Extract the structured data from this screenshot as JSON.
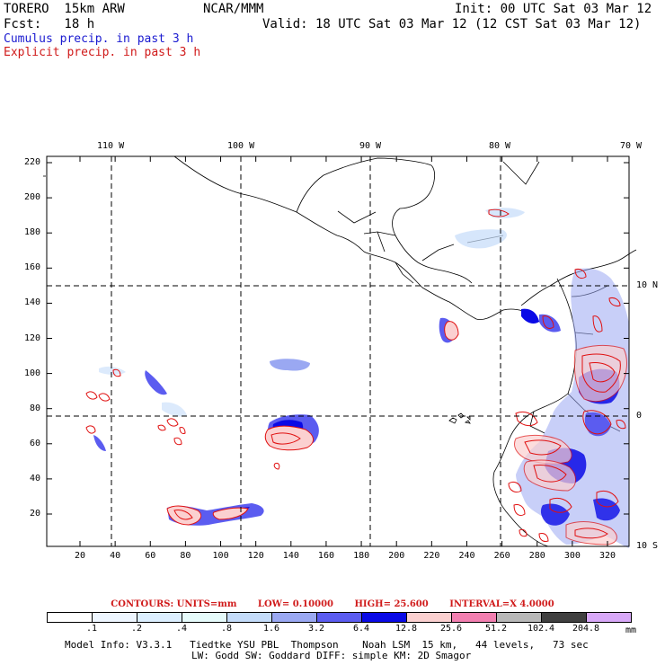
{
  "header": {
    "model": "TORERO  15km ARW",
    "center": "NCAR/MMM",
    "init": "Init: 00 UTC Sat 03 Mar 12",
    "fcst": "Fcst:   18 h",
    "valid": "Valid: 18 UTC Sat 03 Mar 12 (12 CST Sat 03 Mar 12)",
    "field1": "Cumulus precip. in past 3 h",
    "field2": "Explicit precip. in past 3 h"
  },
  "map": {
    "lon_labels": [
      "110 W",
      "100 W",
      "90 W",
      "80 W",
      "70 W"
    ],
    "lat_labels": [
      "10 N",
      "0",
      "10 S"
    ],
    "y_ticks": [
      "220",
      "200",
      "180",
      "160",
      "140",
      "120",
      "100",
      "80",
      "60",
      "40",
      "20"
    ],
    "x_ticks": [
      "20",
      "40",
      "60",
      "80",
      "100",
      "120",
      "140",
      "160",
      "180",
      "200",
      "220",
      "240",
      "260",
      "280",
      "300",
      "320"
    ]
  },
  "contour_info": {
    "units": "CONTOURS:  UNITS=mm",
    "low": "LOW= 0.10000",
    "high": "HIGH=  25.600",
    "interval": "INTERVAL=X  4.0000"
  },
  "colorbar": {
    "labels": [
      ".1",
      ".2",
      ".4",
      ".8",
      "1.6",
      "3.2",
      "6.4",
      "12.8",
      "25.6",
      "51.2",
      "102.4",
      "204.8"
    ],
    "unit": "mm",
    "colors": [
      "#ffffff",
      "#eef6ff",
      "#dcefff",
      "#e6fbfb",
      "#c4dcfa",
      "#9aa8f2",
      "#5b5cf0",
      "#0a0ae6",
      "#fbd0d0",
      "#f27fb0",
      "#b8b8b8",
      "#404040",
      "#d8a8f8"
    ]
  },
  "footer": {
    "line1": "Model Info: V3.3.1   Tiedtke YSU PBL  Thompson    Noah LSM  15 km,   44 levels,   73 sec",
    "line2": "LW: Godd SW: Goddard DIFF: simple KM: 2D Smagor"
  }
}
